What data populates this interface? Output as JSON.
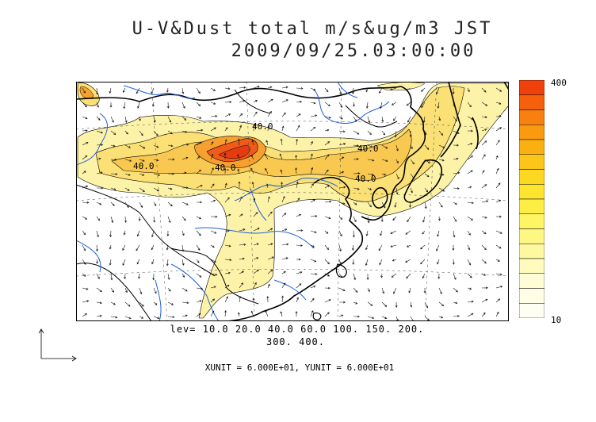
{
  "header": {
    "title": "U-V&Dust total m/s&ug/m3 JST",
    "datetime": "2009/09/25.03:00:00"
  },
  "colorbar": {
    "max_label": "400",
    "min_label": "10",
    "colors": [
      "#f0410a",
      "#f4600c",
      "#f7800f",
      "#f99a10",
      "#fbb012",
      "#fbc619",
      "#fcd821",
      "#fde52f",
      "#fdee45",
      "#fef464",
      "#fef784",
      "#fef9a0",
      "#fefbbd",
      "#fffcd6",
      "#fffde6",
      "#fffef2"
    ]
  },
  "legend": {
    "levels_line1": "lev= 10.0 20.0 40.0 60.0 100. 150. 200.",
    "levels_line2": "300. 400.",
    "units": "XUNIT = 6.000E+01, YUNIT = 6.000E+01"
  },
  "map": {
    "contour_labels": [
      "40.0",
      "40.0",
      "40.0",
      "40.0",
      "40.0"
    ],
    "river_color": "#1f5fdc",
    "coast_color": "#000000",
    "plume_colors": {
      "light": "#fdf3a8",
      "mid": "#fbe076",
      "high": "#f6b43a",
      "peak": "#ef4d17"
    }
  }
}
